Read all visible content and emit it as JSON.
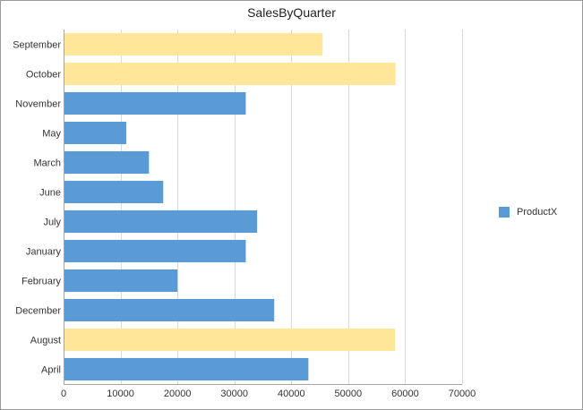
{
  "chart_data": {
    "type": "bar",
    "orientation": "horizontal",
    "title": "SalesByQuarter",
    "categories": [
      "September",
      "October",
      "November",
      "May",
      "March",
      "June",
      "July",
      "January",
      "February",
      "December",
      "August",
      "April"
    ],
    "series": [
      {
        "name": "ProductX",
        "values": [
          45500,
          58300,
          32000,
          11000,
          15000,
          17500,
          34000,
          32000,
          20000,
          37000,
          58200,
          43000
        ]
      }
    ],
    "highlighted_categories": [
      "September",
      "October",
      "August"
    ],
    "xlim": [
      0,
      70000
    ],
    "xticks": [
      0,
      10000,
      20000,
      30000,
      40000,
      50000,
      60000,
      70000
    ],
    "grid": true,
    "legend_position": "right",
    "colors": {
      "bar": "#5b9bd5",
      "highlight": "#ffe699",
      "grid": "#d9d9d9"
    }
  }
}
